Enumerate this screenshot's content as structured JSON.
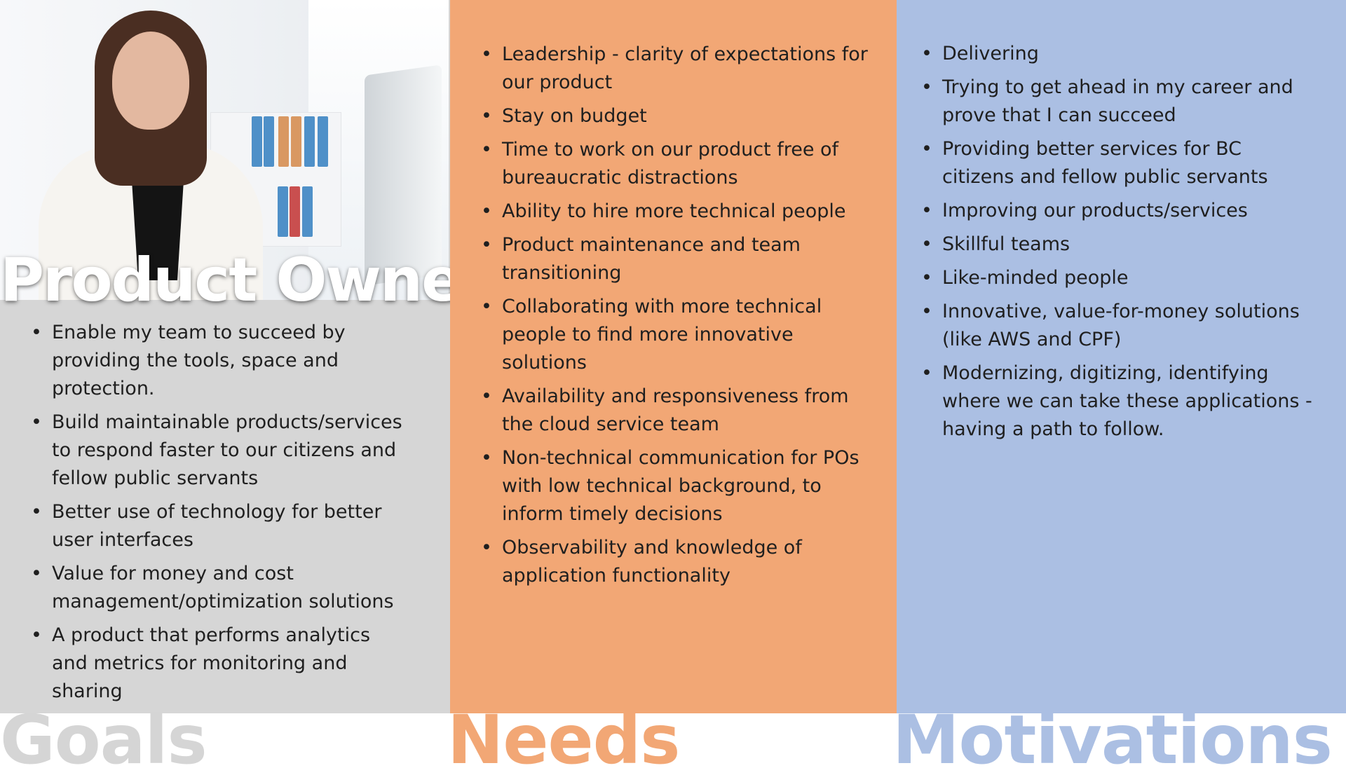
{
  "persona": {
    "title": "Product Owner"
  },
  "sections": {
    "goals": {
      "label": "Goals",
      "color": "#d6d6d6",
      "items": [
        "Enable my team to succeed by providing the tools, space and protection.",
        "Build maintainable products/services to respond faster to our citizens and fellow public servants",
        "Better use of technology for better user interfaces",
        "Value for money  and cost management/optimization solutions",
        "A product that performs analytics and metrics for monitoring and sharing"
      ]
    },
    "needs": {
      "label": "Needs",
      "color": "#f2a775",
      "items": [
        "Leadership - clarity of expectations for our product",
        "Stay on budget",
        "Time to work on our product free of bureaucratic distractions",
        "Ability to hire more technical people",
        "Product maintenance and team transitioning",
        "Collaborating with more technical people to find more innovative solutions",
        "Availability and responsiveness from the cloud service team",
        "Non-technical communication for POs with low technical background, to inform timely decisions",
        "Observability and knowledge of application functionality"
      ]
    },
    "motivations": {
      "label": "Motivations",
      "color": "#abbfe3",
      "items": [
        "Delivering",
        "Trying to get ahead in my career and prove that I can succeed",
        "Providing better services for BC citizens and fellow public servants",
        "Improving our products/services",
        "Skillful teams",
        "Like-minded people",
        "Innovative, value-for-money solutions (like AWS and CPF)",
        "Modernizing, digitizing, identifying where we can take these applications - having a path to follow."
      ]
    }
  },
  "icons": {
    "photo": "persona-photo-image"
  }
}
